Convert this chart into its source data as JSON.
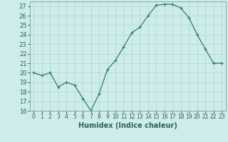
{
  "x": [
    0,
    1,
    2,
    3,
    4,
    5,
    6,
    7,
    8,
    9,
    10,
    11,
    12,
    13,
    14,
    15,
    16,
    17,
    18,
    19,
    20,
    21,
    22,
    23
  ],
  "y": [
    20,
    19.7,
    20,
    18.5,
    19,
    18.7,
    17.3,
    16,
    17.8,
    20.3,
    21.3,
    22.7,
    24.2,
    24.8,
    26,
    27.1,
    27.2,
    27.2,
    26.8,
    25.8,
    24,
    22.5,
    21,
    21
  ],
  "line_color": "#2e7d6e",
  "marker": "+",
  "marker_size": 3,
  "marker_linewidth": 0.9,
  "background_color": "#ceecea",
  "grid_color": "#b0d4d0",
  "xlabel": "Humidex (Indice chaleur)",
  "ylim": [
    16,
    27.5
  ],
  "xlim": [
    -0.5,
    23.5
  ],
  "yticks": [
    16,
    17,
    18,
    19,
    20,
    21,
    22,
    23,
    24,
    25,
    26,
    27
  ],
  "xticks": [
    0,
    1,
    2,
    3,
    4,
    5,
    6,
    7,
    8,
    9,
    10,
    11,
    12,
    13,
    14,
    15,
    16,
    17,
    18,
    19,
    20,
    21,
    22,
    23
  ]
}
